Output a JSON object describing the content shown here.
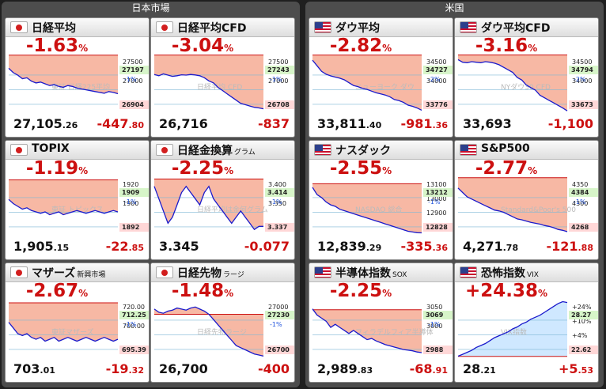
{
  "regions": {
    "japan": "日本市場",
    "us": "米国"
  },
  "cards": [
    {
      "name": "日経平均",
      "sub": "",
      "flag": "jp",
      "pct": "-1.63",
      "unit": "%",
      "value_main": "27,105",
      "value_dec": ".26",
      "change_main": "-447",
      "change_dec": ".80",
      "direction": "down",
      "ticks": [
        "27500",
        "27000"
      ],
      "current_label": "27197",
      "prev_label": "26904",
      "pct_label": "-1%",
      "watermark": "東証 日経225平均",
      "y_range": [
        26880,
        27560
      ],
      "prev_close": 27553,
      "close": 27105,
      "series": [
        27400,
        27350,
        27320,
        27280,
        27290,
        27250,
        27230,
        27240,
        27220,
        27200,
        27210,
        27190,
        27180,
        27200,
        27190,
        27170,
        27160,
        27150,
        27140,
        27130,
        27120,
        27110,
        27130,
        27120,
        27105
      ]
    },
    {
      "name": "日経平均CFD",
      "sub": "",
      "flag": "jp",
      "pct": "-3.04",
      "unit": "%",
      "value_main": "26,716",
      "value_dec": "",
      "change_main": "-837",
      "change_dec": "",
      "direction": "down",
      "ticks": [
        "27500",
        "27000"
      ],
      "current_label": "27243",
      "prev_label": "26708",
      "pct_label": "-1%",
      "watermark": "日経平均 CFD",
      "y_range": [
        26650,
        27560
      ],
      "prev_close": 27553,
      "close": 26716,
      "series": [
        27250,
        27230,
        27260,
        27240,
        27220,
        27230,
        27245,
        27240,
        27250,
        27243,
        27230,
        27200,
        27150,
        27120,
        27050,
        27000,
        26950,
        26900,
        26850,
        26800,
        26780,
        26760,
        26740,
        26730,
        26716
      ]
    },
    {
      "name": "TOPIX",
      "sub": "",
      "flag": "jp",
      "pct": "-1.19",
      "unit": "%",
      "value_main": "1,905",
      "value_dec": ".15",
      "change_main": "-22",
      "change_dec": ".85",
      "direction": "down",
      "ticks": [
        "1920",
        "1900"
      ],
      "current_label": "1909",
      "prev_label": "1892",
      "pct_label": "-1%",
      "watermark": "東証 トピックス",
      "y_range": [
        1888,
        1930
      ],
      "prev_close": 1928,
      "close": 1905,
      "series": [
        1914,
        1911,
        1909,
        1907,
        1908,
        1906,
        1905,
        1904,
        1905,
        1903,
        1904,
        1905,
        1903,
        1904,
        1905,
        1906,
        1905,
        1904,
        1905,
        1906,
        1905,
        1904,
        1905,
        1906,
        1905
      ]
    },
    {
      "name": "日経金換算",
      "sub": "グラム",
      "flag": "jp",
      "pct": "-2.25",
      "unit": "%",
      "value_main": "3.345",
      "value_dec": "",
      "change_main": "-0.077",
      "change_dec": "",
      "direction": "down",
      "ticks": [
        "3.400",
        "3.350"
      ],
      "current_label": "3.414",
      "prev_label": "3.337",
      "pct_label": "-1%",
      "watermark": "日経平均は金何グラム",
      "y_range": [
        3.33,
        3.425
      ],
      "prev_close": 3.422,
      "close": 3.345,
      "series": [
        3.41,
        3.39,
        3.37,
        3.35,
        3.36,
        3.38,
        3.4,
        3.41,
        3.4,
        3.39,
        3.38,
        3.4,
        3.41,
        3.39,
        3.38,
        3.37,
        3.36,
        3.35,
        3.36,
        3.37,
        3.36,
        3.35,
        3.34,
        3.345,
        3.345
      ]
    },
    {
      "name": "マザーズ",
      "sub": "新興市場",
      "flag": "jp",
      "pct": "-2.67",
      "unit": "%",
      "value_main": "703",
      "value_dec": ".01",
      "change_main": "-19",
      "change_dec": ".32",
      "direction": "down",
      "ticks": [
        "720.00",
        "700.00"
      ],
      "current_label": "712.25",
      "prev_label": "695.39",
      "pct_label": "-1%",
      "watermark": "東証マザーズ",
      "y_range": [
        693,
        724
      ],
      "prev_close": 722.3,
      "close": 703,
      "series": [
        712,
        709,
        706,
        705,
        706,
        704,
        703,
        704,
        702,
        703,
        704,
        702,
        703,
        704,
        703,
        702,
        703,
        704,
        703,
        702,
        703,
        704,
        703,
        702,
        703
      ]
    },
    {
      "name": "日経先物",
      "sub": "ラージ",
      "flag": "jp",
      "pct": "-1.48",
      "unit": "%",
      "value_main": "26,700",
      "value_dec": "",
      "change_main": "-400",
      "change_dec": "",
      "direction": "down",
      "ticks": [
        "27000"
      ],
      "current_label": "27230",
      "prev_label": "26700",
      "pct_label": "-1%",
      "watermark": "日経先物ラージ",
      "y_range": [
        26680,
        27240
      ],
      "prev_close": 27100,
      "close": 26700,
      "series": [
        27150,
        27120,
        27110,
        27130,
        27140,
        27160,
        27150,
        27140,
        27160,
        27170,
        27150,
        27130,
        27100,
        27050,
        27000,
        26950,
        26900,
        26850,
        26800,
        26780,
        26760,
        26740,
        26720,
        26710,
        26700
      ]
    },
    {
      "name": "ダウ平均",
      "sub": "",
      "flag": "us",
      "pct": "-2.82",
      "unit": "%",
      "value_main": "33,811",
      "value_dec": ".40",
      "change_main": "-981",
      "change_dec": ".36",
      "direction": "down",
      "ticks": [
        "34500",
        "34000"
      ],
      "current_label": "34727",
      "prev_label": "33776",
      "pct_label": "-2%",
      "watermark": "ニューヨーク ダウ",
      "y_range": [
        33760,
        34800
      ],
      "prev_close": 34792,
      "close": 33811,
      "series": [
        34700,
        34600,
        34500,
        34450,
        34420,
        34400,
        34380,
        34350,
        34300,
        34250,
        34230,
        34200,
        34180,
        34150,
        34120,
        34100,
        34080,
        34050,
        34000,
        33980,
        33950,
        33900,
        33880,
        33850,
        33811
      ]
    },
    {
      "name": "ダウ平均CFD",
      "sub": "",
      "flag": "us",
      "pct": "-3.16",
      "unit": "%",
      "value_main": "33,693",
      "value_dec": "",
      "change_main": "-1,100",
      "change_dec": "",
      "direction": "down",
      "ticks": [
        "34500",
        "34000"
      ],
      "current_label": "34794",
      "prev_label": "33673",
      "pct_label": "-2%",
      "watermark": "NYダウ30 CFD",
      "y_range": [
        33650,
        34800
      ],
      "prev_close": 34793,
      "close": 33693,
      "series": [
        34700,
        34650,
        34640,
        34660,
        34650,
        34640,
        34660,
        34650,
        34630,
        34600,
        34550,
        34500,
        34450,
        34350,
        34300,
        34200,
        34150,
        34100,
        34000,
        33950,
        33900,
        33850,
        33800,
        33750,
        33693
      ]
    },
    {
      "name": "ナスダック",
      "sub": "",
      "flag": "us",
      "pct": "-2.55",
      "unit": "%",
      "value_main": "12,839",
      "value_dec": ".29",
      "change_main": "-335",
      "change_dec": ".36",
      "direction": "down",
      "ticks": [
        "13100",
        "13000",
        "12900"
      ],
      "current_label": "13212",
      "prev_label": "12828",
      "pct_label": "-1%",
      "watermark": "NASDAQ 総合",
      "y_range": [
        12820,
        13220
      ],
      "prev_close": 13175,
      "close": 12839,
      "series": [
        13150,
        13100,
        13080,
        13050,
        13030,
        13020,
        13000,
        12990,
        12980,
        12970,
        12960,
        12950,
        12940,
        12930,
        12920,
        12910,
        12900,
        12890,
        12880,
        12870,
        12860,
        12850,
        12845,
        12840,
        12839
      ]
    },
    {
      "name": "S&P500",
      "sub": "",
      "flag": "us",
      "pct": "-2.77",
      "unit": "%",
      "value_main": "4,271",
      "value_dec": ".78",
      "change_main": "-121",
      "change_dec": ".88",
      "direction": "down",
      "ticks": [
        "4350",
        "4300"
      ],
      "current_label": "4384",
      "prev_label": "4268",
      "pct_label": "-1%",
      "watermark": "Standard&Poor's 500",
      "y_range": [
        4262,
        4395
      ],
      "prev_close": 4393.7,
      "close": 4271.8,
      "series": [
        4370,
        4360,
        4350,
        4345,
        4340,
        4335,
        4330,
        4325,
        4320,
        4318,
        4315,
        4310,
        4305,
        4300,
        4298,
        4295,
        4292,
        4290,
        4288,
        4285,
        4283,
        4280,
        4276,
        4274,
        4271
      ]
    },
    {
      "name": "半導体指数",
      "sub": "SOX",
      "flag": "us",
      "pct": "-2.25",
      "unit": "%",
      "value_main": "2,989",
      "value_dec": ".83",
      "change_main": "-68",
      "change_dec": ".91",
      "direction": "down",
      "ticks": [
        "3050",
        "3000"
      ],
      "current_label": "3069",
      "prev_label": "2988",
      "pct_label": "-1%",
      "watermark": "フィラデルフィア半導体",
      "y_range": [
        2980,
        3075
      ],
      "prev_close": 3058.7,
      "close": 2989.8,
      "series": [
        3060,
        3050,
        3045,
        3040,
        3030,
        3035,
        3030,
        3025,
        3020,
        3025,
        3020,
        3015,
        3010,
        3012,
        3008,
        3005,
        3002,
        3000,
        2998,
        2996,
        2994,
        2993,
        2992,
        2990,
        2989
      ]
    },
    {
      "name": "恐怖指数",
      "sub": "VIX",
      "flag": "us",
      "pct": "+24.38",
      "unit": "%",
      "value_main": "28",
      "value_dec": ".21",
      "change_main": "+5",
      "change_dec": ".53",
      "direction": "up",
      "ticks": [
        "+24%",
        "+10%",
        "+4%"
      ],
      "current_label": "28.27",
      "prev_label": "22.62",
      "pct_label": "",
      "watermark": "VIX指数",
      "y_range": [
        22.5,
        28.5
      ],
      "prev_close": 22.68,
      "close": 28.21,
      "series": [
        22.7,
        22.9,
        23.1,
        23.3,
        23.6,
        23.8,
        24.0,
        24.3,
        24.6,
        24.8,
        25.0,
        25.2,
        25.5,
        25.7,
        26.0,
        26.2,
        26.5,
        26.7,
        26.9,
        27.2,
        27.5,
        27.8,
        28.1,
        28.3,
        28.21
      ]
    }
  ]
}
